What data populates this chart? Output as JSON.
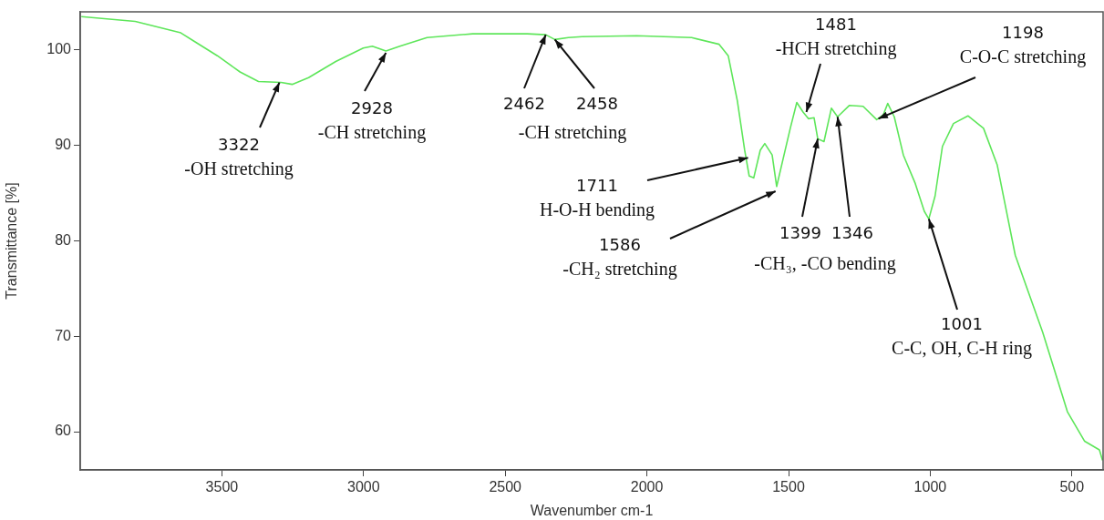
{
  "chart_data": {
    "type": "line",
    "xlabel": "Wavenumber cm-1",
    "ylabel": "Transmittance [%]",
    "xlim": [
      4000,
      390
    ],
    "ylim": [
      56,
      104
    ],
    "xticks": [
      3500,
      3000,
      2500,
      2000,
      1500,
      1000,
      500
    ],
    "yticks": [
      60,
      70,
      80,
      90,
      100
    ],
    "grid": false,
    "legend": false,
    "series": [
      {
        "color": "#5ee65a",
        "x": [
          3996,
          3806,
          3645,
          3597,
          3516,
          3436,
          3371,
          3291,
          3252,
          3194,
          3098,
          3001,
          2969,
          2921,
          2872,
          2776,
          2615,
          2422,
          2357,
          2325,
          2277,
          2229,
          2036,
          1842,
          1745,
          1713,
          1681,
          1655,
          1639,
          1623,
          1600,
          1584,
          1558,
          1542,
          1520,
          1494,
          1471,
          1449,
          1430,
          1410,
          1397,
          1375,
          1349,
          1327,
          1285,
          1237,
          1189,
          1166,
          1150,
          1127,
          1095,
          1054,
          1021,
          1005,
          983,
          957,
          918,
          867,
          812,
          764,
          700,
          603,
          516,
          455,
          403,
          392
        ],
        "values": [
          103.5,
          103.0,
          101.8,
          100.9,
          99.4,
          97.7,
          96.7,
          96.6,
          96.4,
          97.1,
          98.8,
          100.2,
          100.4,
          99.9,
          100.4,
          101.3,
          101.7,
          101.7,
          101.6,
          101.1,
          101.3,
          101.4,
          101.5,
          101.3,
          100.6,
          99.4,
          94.7,
          89.5,
          86.8,
          86.6,
          89.5,
          90.2,
          89.0,
          85.7,
          88.5,
          91.8,
          94.5,
          93.5,
          92.8,
          92.9,
          90.7,
          90.4,
          93.9,
          93.0,
          94.2,
          94.1,
          92.7,
          93.2,
          94.4,
          93.0,
          89.0,
          86.1,
          83.1,
          82.3,
          84.7,
          89.9,
          92.3,
          93.1,
          91.8,
          88.0,
          78.5,
          70.4,
          62.1,
          59.0,
          58.1,
          57.0
        ]
      }
    ],
    "annotations": [
      {
        "text": "3322\n-OH stretching",
        "x": 3297,
        "y": 96.6
      },
      {
        "text": "2928\n-CH stretching",
        "x": 2921,
        "y": 99.7
      },
      {
        "text": "2462",
        "x": 2357,
        "y": 101.6
      },
      {
        "text": "2458",
        "x": 2325,
        "y": 101.1
      },
      "-CH stretching",
      {
        "text": "1711\nH-O-H bending",
        "x": 1643,
        "y": 88.7
      },
      {
        "text": "1586\n-CH₂ stretching",
        "x": 1546,
        "y": 85.2
      },
      {
        "text": "1481\n-HCH stretching",
        "x": 1437,
        "y": 93.5
      },
      {
        "text": "1399",
        "x": 1397,
        "y": 90.7
      },
      {
        "text": "1346",
        "x": 1327,
        "y": 93.0
      },
      "-CH₃, -CO bending",
      {
        "text": "1198\nC-O-C stretching",
        "x": 1183,
        "y": 92.8
      },
      {
        "text": "1001\nC-C, OH, C-H ring",
        "x": 1005,
        "y": 82.3
      }
    ]
  }
}
